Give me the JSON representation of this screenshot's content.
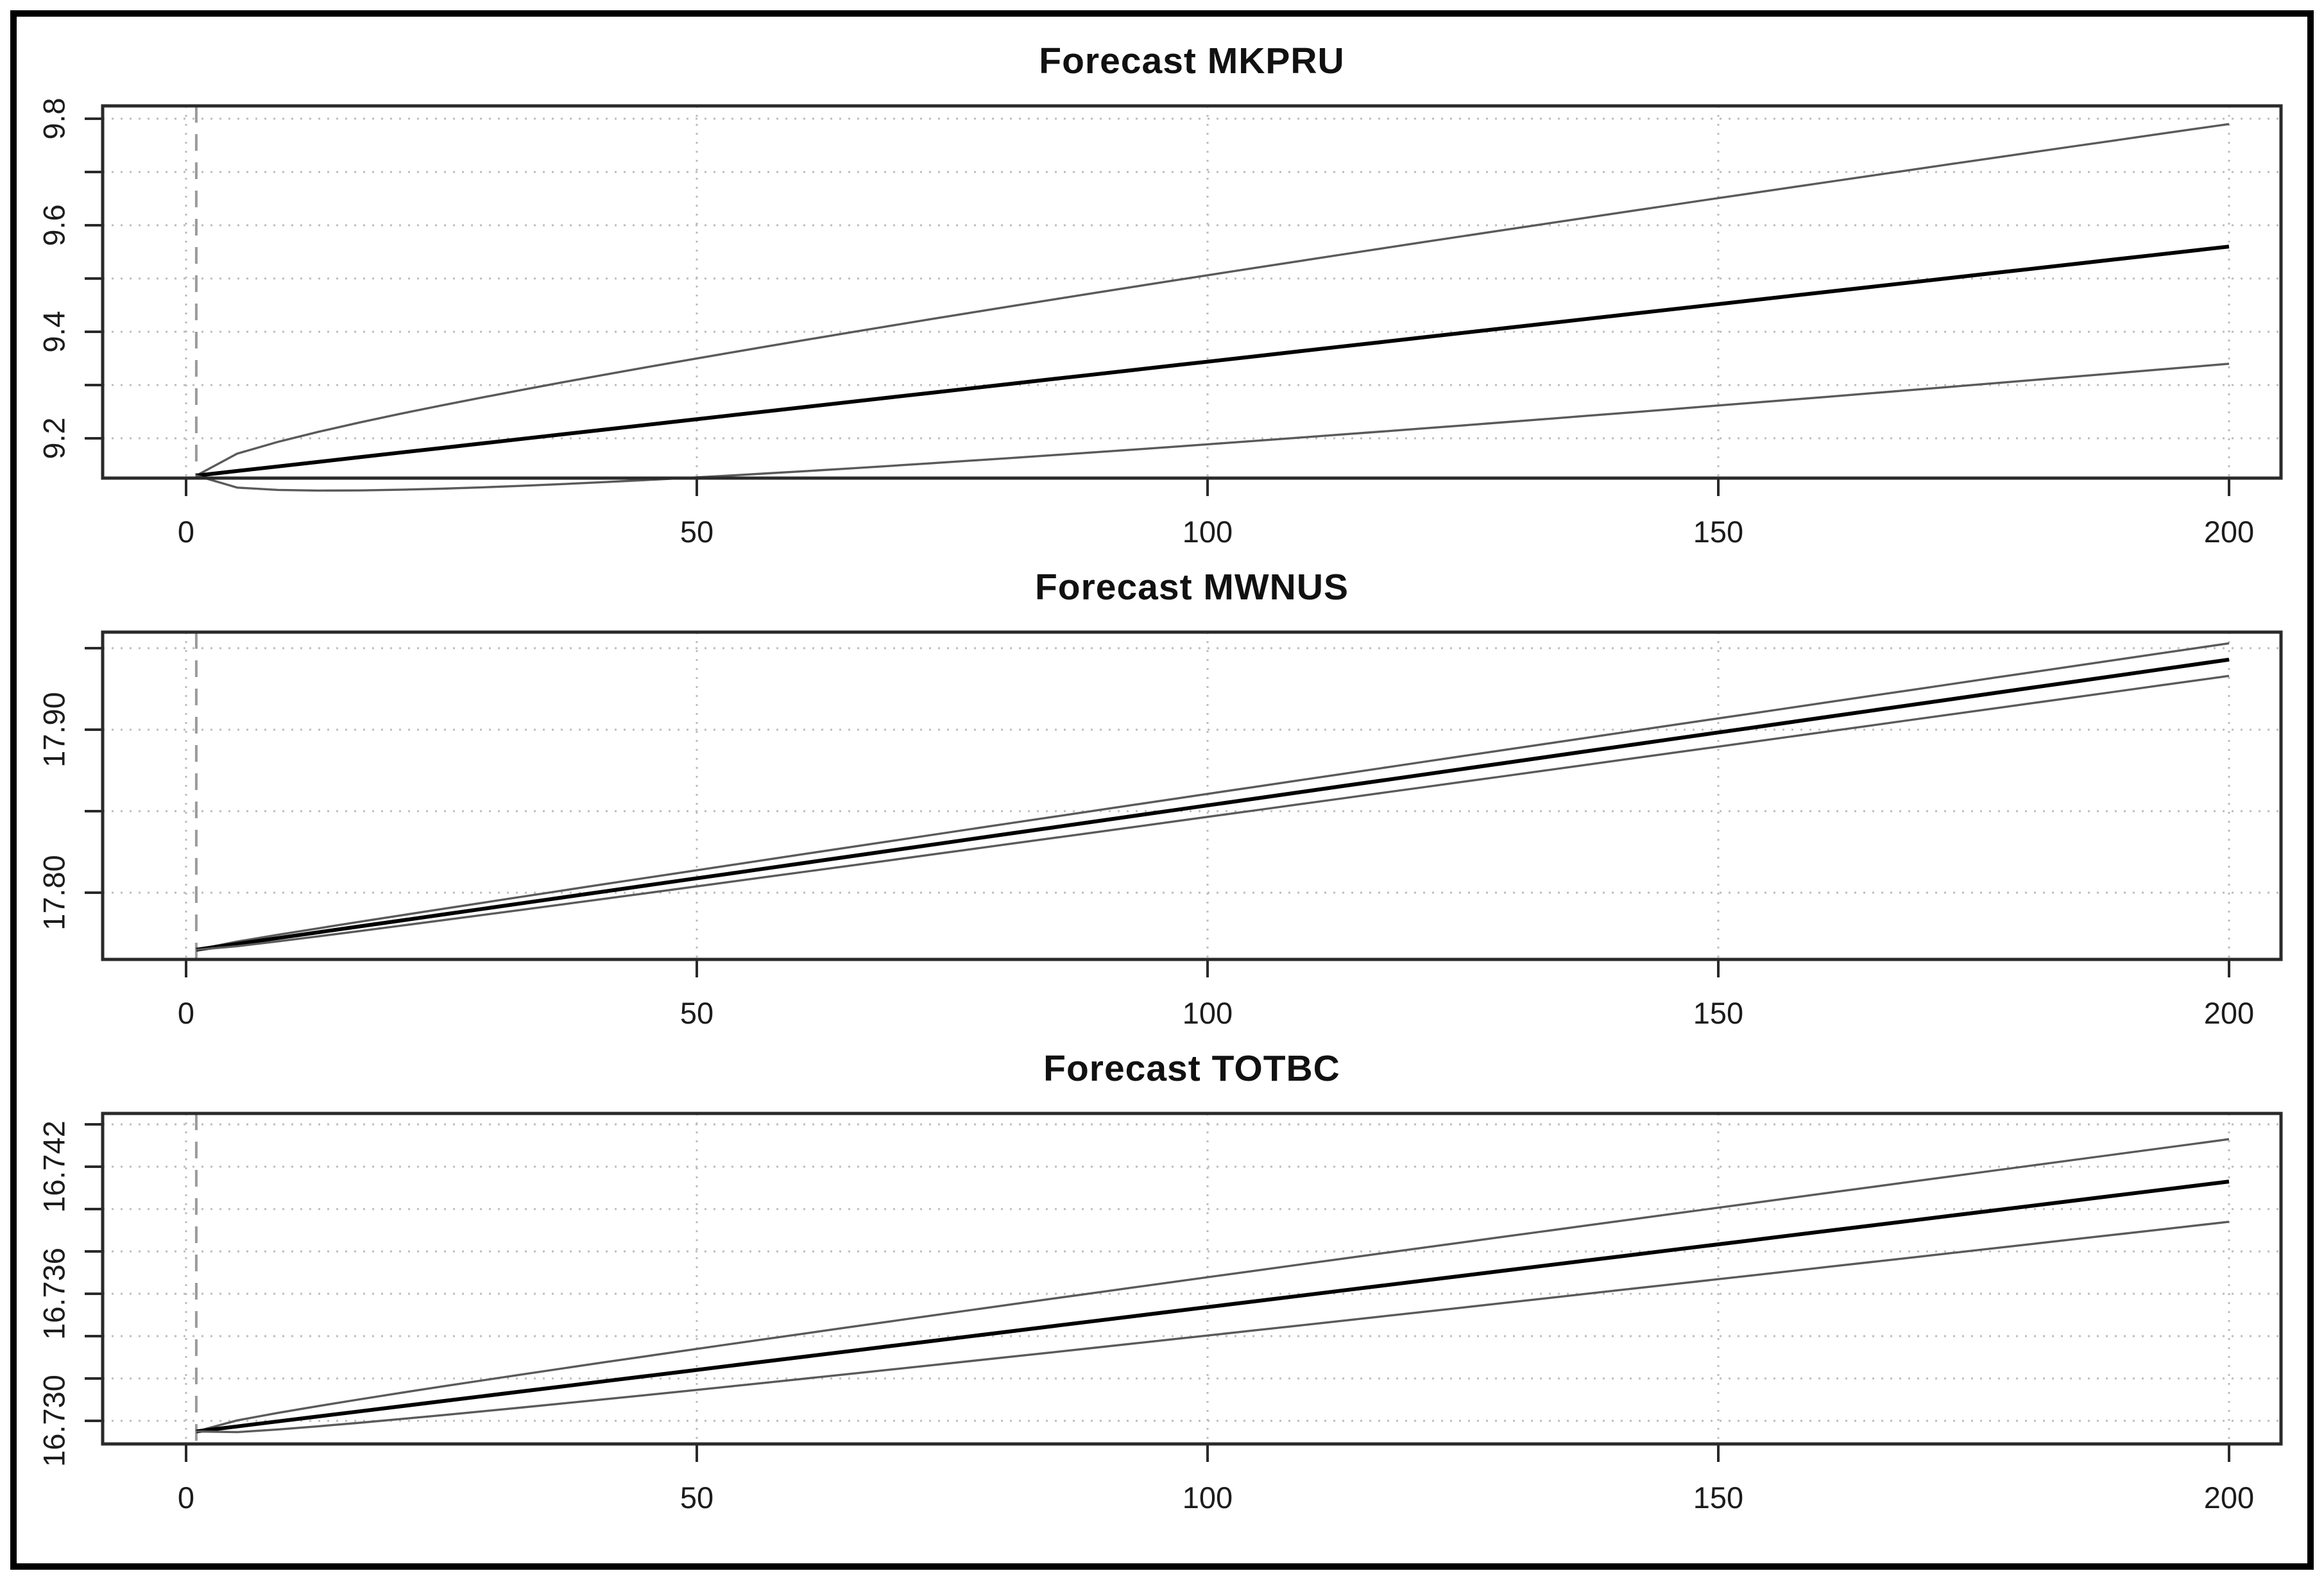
{
  "figure": {
    "background": "#ffffff",
    "border_color": "#000000"
  },
  "colors": {
    "mean_line": "#000000",
    "bound_line": "#5a5a5a",
    "grid": "#bcbcbc",
    "origin_dash": "#9b9b9b",
    "box": "#2a2a2a",
    "text": "#1c1c1c"
  },
  "chart_data": [
    {
      "type": "line",
      "title": "Forecast MKPRU",
      "x_ticks": [
        0,
        50,
        100,
        150,
        200
      ],
      "xlim": [
        -8,
        205
      ],
      "ylim": [
        9.08,
        9.82
      ],
      "y_grid": [
        9.2,
        9.3,
        9.4,
        9.5,
        9.6,
        9.7,
        9.8
      ],
      "y_labels": [
        {
          "value": 9.2,
          "text": "9.2"
        },
        {
          "value": 9.4,
          "text": "9.4"
        },
        {
          "value": 9.6,
          "text": "9.6"
        },
        {
          "value": 9.8,
          "text": "9.8"
        }
      ],
      "forecast_origin_x": 1,
      "x_range": [
        1,
        200
      ],
      "start_value": 9.13,
      "series": [
        {
          "name": "upper confidence bound",
          "role": "upper",
          "start": 9.13,
          "end": 9.79
        },
        {
          "name": "point forecast",
          "role": "mean",
          "start": 9.13,
          "end": 9.56
        },
        {
          "name": "lower confidence bound",
          "role": "lower",
          "start": 9.13,
          "end": 9.34
        }
      ],
      "grid_style": "dotted",
      "legend": "none"
    },
    {
      "type": "line",
      "title": "Forecast MWNUS",
      "x_ticks": [
        0,
        50,
        100,
        150,
        200
      ],
      "xlim": [
        -8,
        205
      ],
      "ylim": [
        17.757,
        17.96
      ],
      "y_grid": [
        17.8,
        17.85,
        17.9,
        17.95
      ],
      "y_labels": [
        {
          "value": 17.8,
          "text": "17.80"
        },
        {
          "value": 17.9,
          "text": "17.90"
        }
      ],
      "forecast_origin_x": 1,
      "x_range": [
        1,
        200
      ],
      "start_value": 17.765,
      "series": [
        {
          "name": "upper confidence bound",
          "role": "upper",
          "start": 17.765,
          "end": 17.953
        },
        {
          "name": "point forecast",
          "role": "mean",
          "start": 17.765,
          "end": 17.943
        },
        {
          "name": "lower confidence bound",
          "role": "lower",
          "start": 17.765,
          "end": 17.933
        }
      ],
      "grid_style": "dotted",
      "legend": "none"
    },
    {
      "type": "line",
      "title": "Forecast TOTBC",
      "x_ticks": [
        0,
        50,
        100,
        150,
        200
      ],
      "xlim": [
        -8,
        205
      ],
      "ylim": [
        16.7288,
        16.7445
      ],
      "y_grid": [
        16.73,
        16.732,
        16.734,
        16.736,
        16.738,
        16.74,
        16.742,
        16.744
      ],
      "y_labels": [
        {
          "value": 16.73,
          "text": "16.730"
        },
        {
          "value": 16.736,
          "text": "16.736"
        },
        {
          "value": 16.742,
          "text": "16.742"
        }
      ],
      "forecast_origin_x": 1,
      "x_range": [
        1,
        200
      ],
      "start_value": 16.7295,
      "series": [
        {
          "name": "upper confidence bound",
          "role": "upper",
          "start": 16.7295,
          "end": 16.7433
        },
        {
          "name": "point forecast",
          "role": "mean",
          "start": 16.7295,
          "end": 16.7413
        },
        {
          "name": "lower confidence bound",
          "role": "lower",
          "start": 16.7295,
          "end": 16.7394
        }
      ],
      "grid_style": "dotted",
      "legend": "none"
    }
  ]
}
